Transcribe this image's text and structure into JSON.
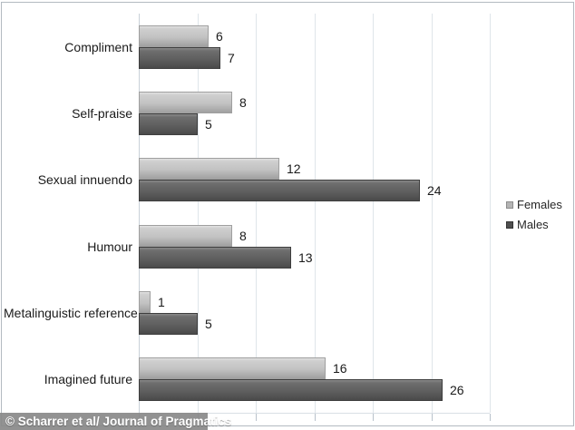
{
  "chart_data": {
    "type": "bar",
    "orientation": "horizontal",
    "title": "",
    "xlabel": "",
    "ylabel": "",
    "categories": [
      "Compliment",
      "Self-praise",
      "Sexual innuendo",
      "Humour",
      "Metalinguistic reference",
      "Imagined future"
    ],
    "series": [
      {
        "name": "Females",
        "values": [
          6,
          8,
          12,
          8,
          1,
          16
        ],
        "color_top": "#d8d8d8",
        "color_bottom": "#a0a0a0",
        "border_color": "#9f9f9f",
        "marker_color": "#b4b4b4",
        "marker_border": "#8c8c8c"
      },
      {
        "name": "Males",
        "values": [
          7,
          5,
          24,
          13,
          5,
          26
        ],
        "color_top": "#6e6e6e",
        "color_bottom": "#4a4a4a",
        "border_color": "#3e3e3e",
        "marker_color": "#4f4f4f",
        "marker_border": "#333333"
      }
    ],
    "xlim": [
      0,
      30
    ],
    "gridline_step": 5,
    "grid": true,
    "legend_position": "right",
    "data_labels": true
  },
  "legend": {
    "items": [
      {
        "label": "Females"
      },
      {
        "label": "Males"
      }
    ]
  },
  "watermark": {
    "text": "© Scharrer et al/ Journal of Pragmatics"
  },
  "colors": {
    "background": "#ffffff",
    "gridline": "#dfe5ea",
    "axis_line": "#c9d1d8",
    "border": "#b3bac1",
    "text": "#1a1a1a",
    "watermark_bg": "#898989",
    "watermark_text": "#ffffff"
  }
}
